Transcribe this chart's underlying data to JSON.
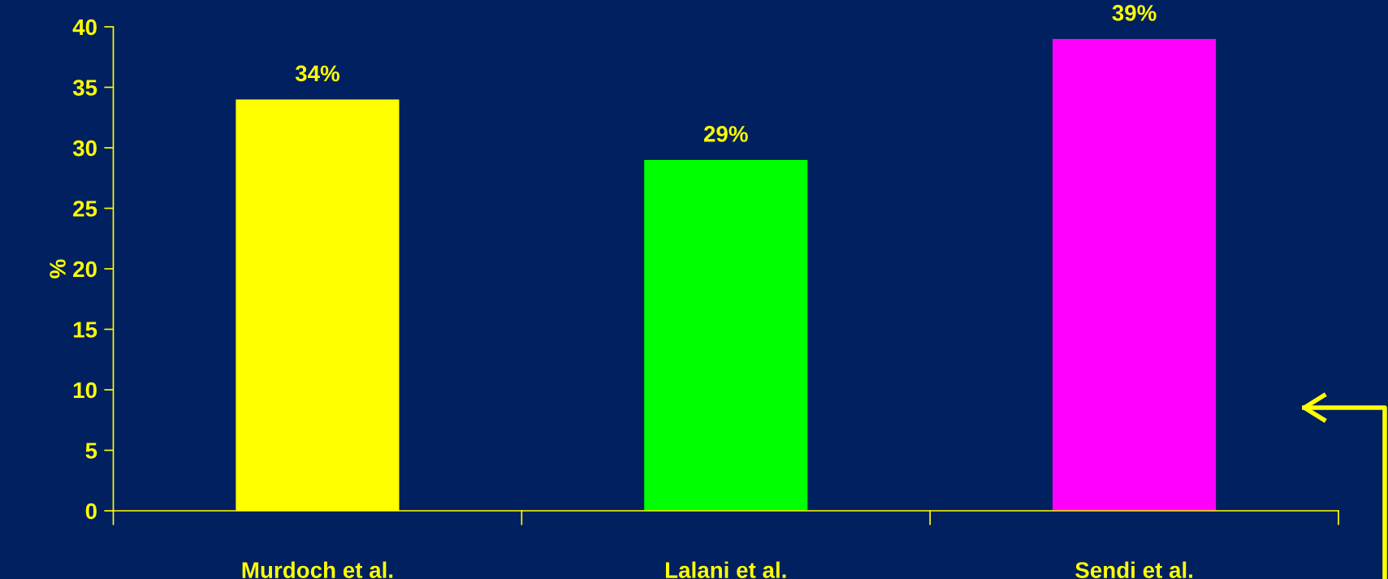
{
  "chart_data": {
    "type": "bar",
    "ylabel": "%",
    "categories": [
      "Murdoch et al.",
      "Lalani et al.",
      "Sendi et al."
    ],
    "values": [
      34,
      29,
      39
    ],
    "colors": [
      "#ffff00",
      "#00ff00",
      "#ff00ff"
    ],
    "value_labels": [
      "34%",
      "29%",
      "39%"
    ],
    "ylim": [
      0,
      40
    ],
    "yticks": [
      0,
      5,
      10,
      15,
      20,
      25,
      30,
      35,
      40
    ],
    "grid": false,
    "legend": false
  }
}
